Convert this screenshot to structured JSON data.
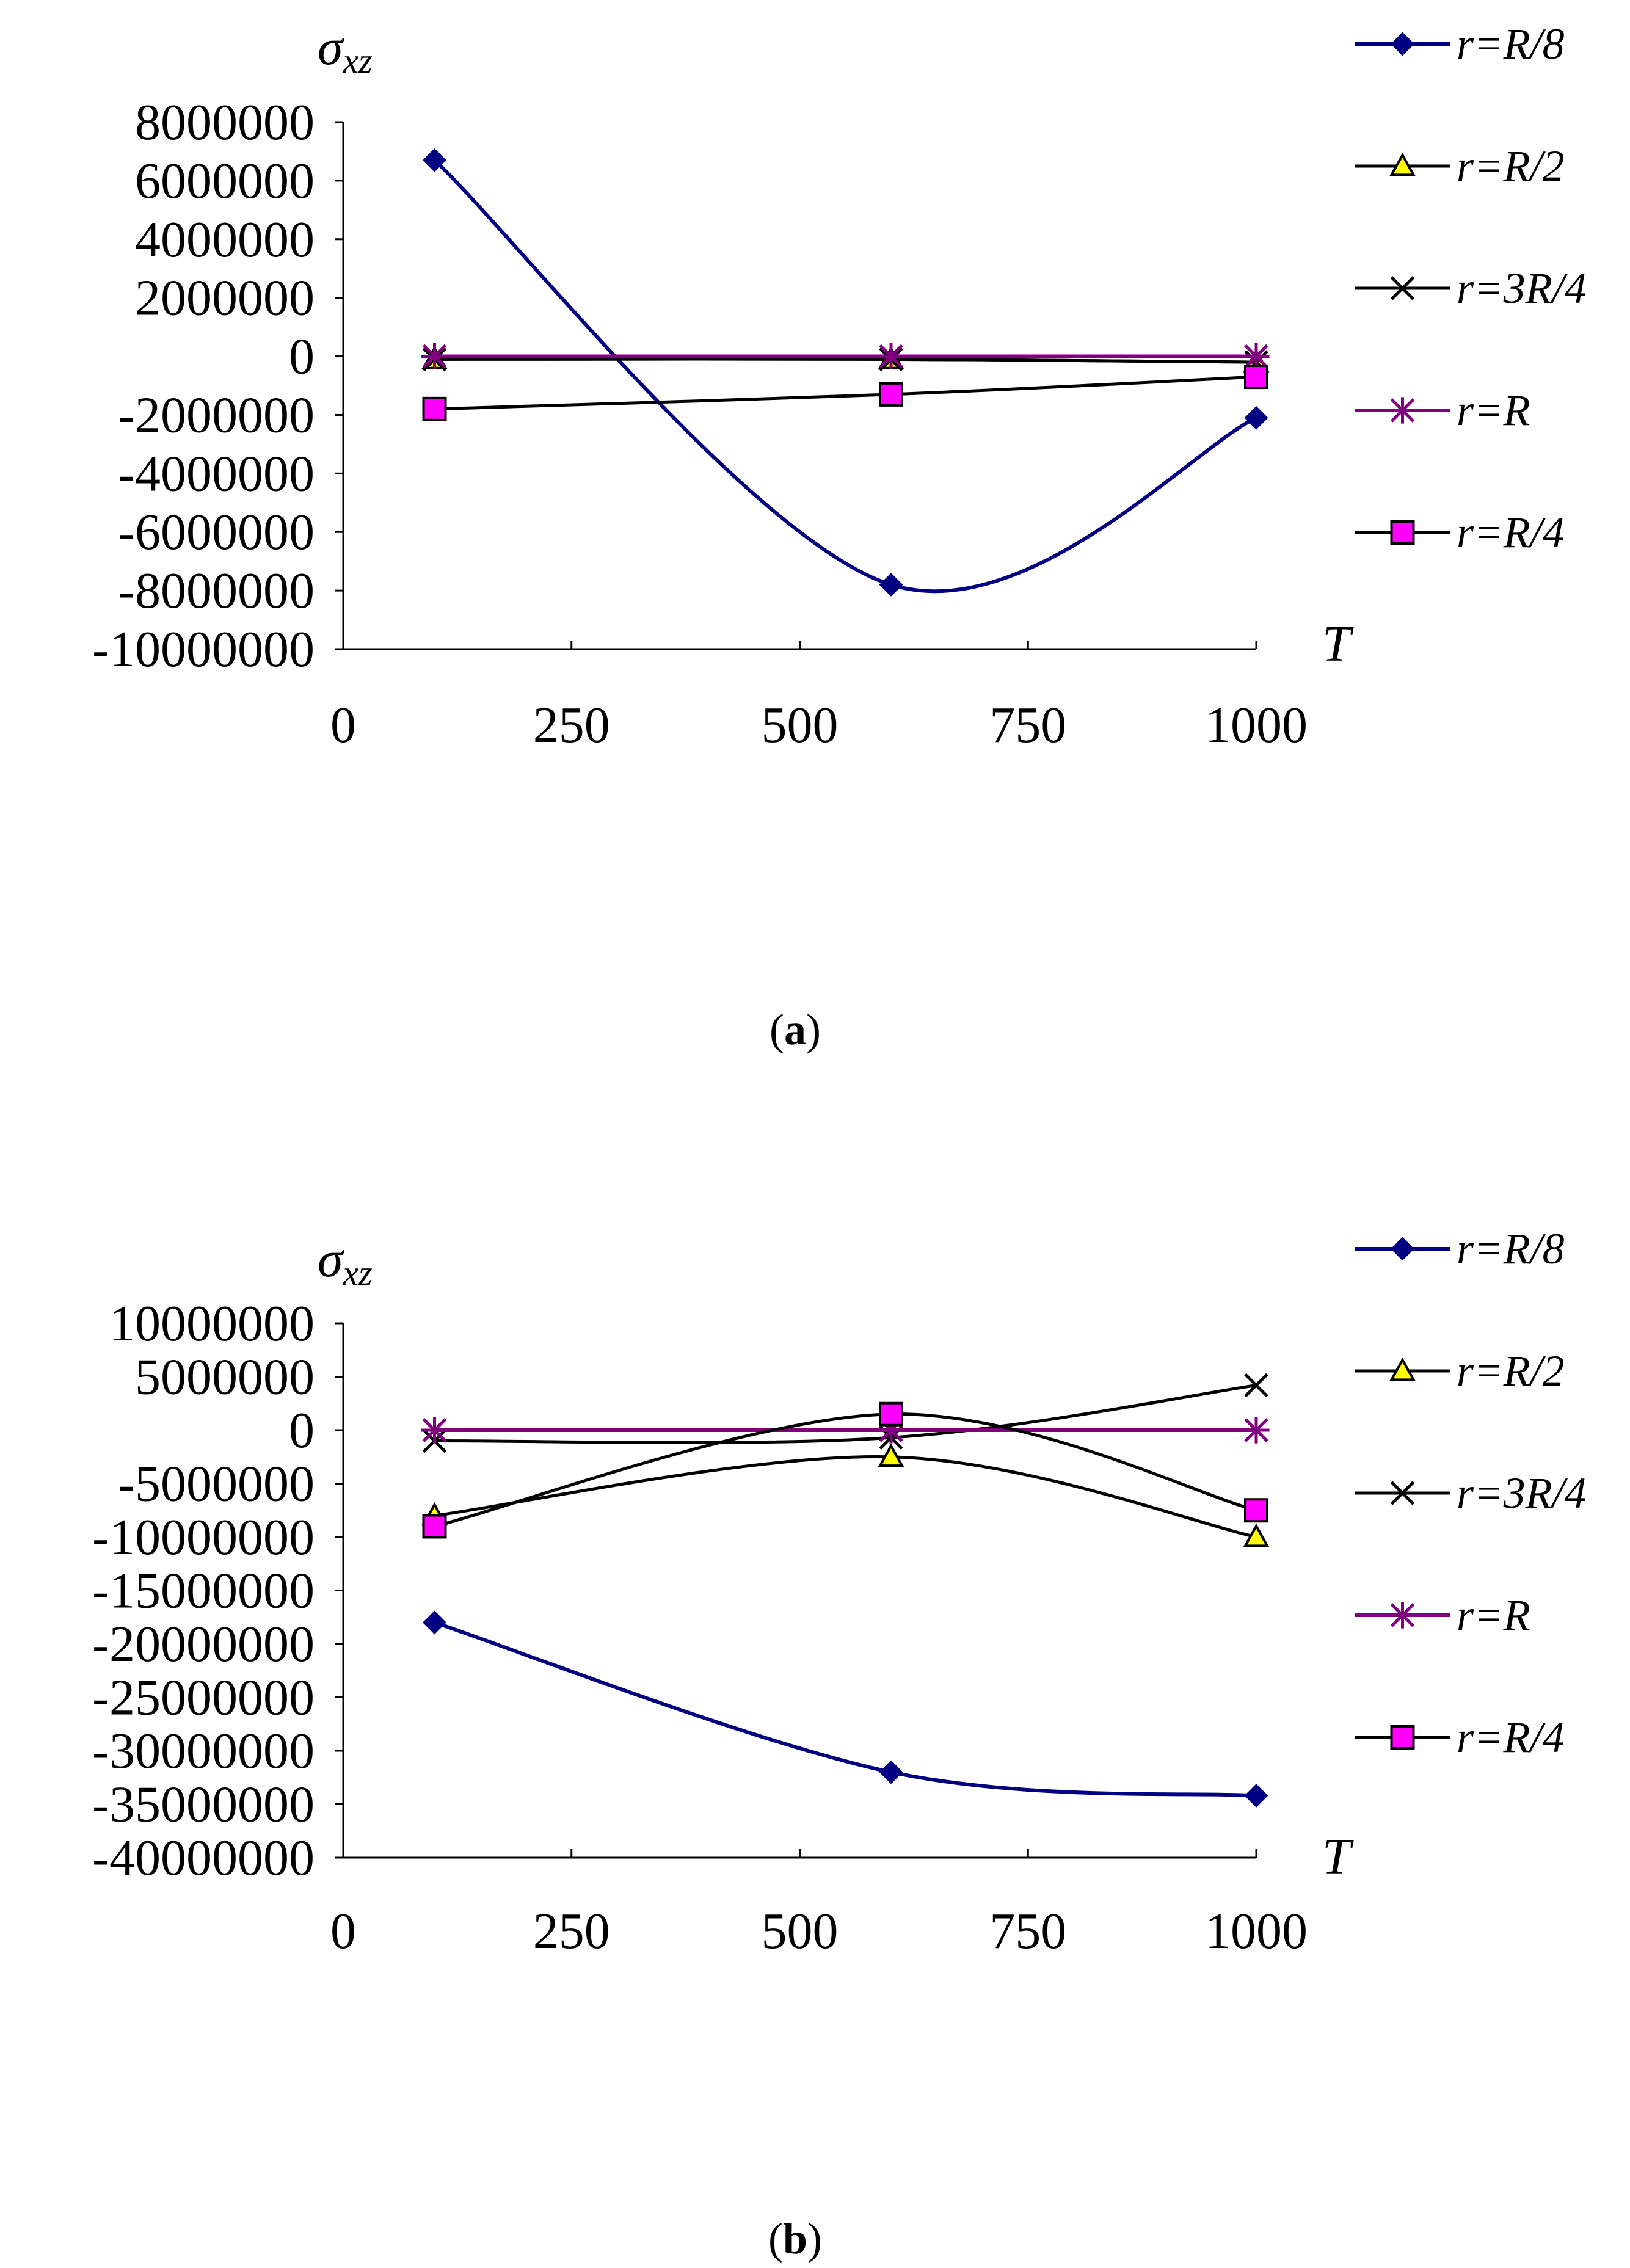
{
  "chart_data": [
    {
      "type": "line",
      "panel_label": "a",
      "caption_open": "(",
      "caption_close": ")",
      "ylabel_symbol": "σ",
      "ylabel_subscript": "xz",
      "xlabel": "T",
      "xlim": [
        0,
        1000
      ],
      "xticks": [
        "0",
        "250",
        "500",
        "750",
        "1000"
      ],
      "xtick_values": [
        0,
        250,
        500,
        750,
        1000
      ],
      "ylim": [
        -10000000,
        8000000
      ],
      "yticks": [
        "8000000",
        "6000000",
        "4000000",
        "2000000",
        "0",
        "-2000000",
        "-4000000",
        "-6000000",
        "-8000000",
        "-10000000"
      ],
      "ytick_values": [
        8000000,
        6000000,
        4000000,
        2000000,
        0,
        -2000000,
        -4000000,
        -6000000,
        -8000000,
        -10000000
      ],
      "x": [
        100,
        600,
        1000
      ],
      "series": [
        {
          "name": "r=R/8",
          "color": "#000080",
          "marker": "diamond",
          "smooth": true,
          "values": [
            6700000,
            -7800000,
            -2100000
          ]
        },
        {
          "name": "r=R/2",
          "color": "#000000",
          "marker": "triangle",
          "marker_fill": "#ffff00",
          "smooth": true,
          "values": [
            -100000,
            -100000,
            -200000
          ]
        },
        {
          "name": "r=3R/4",
          "color": "#000000",
          "marker": "x",
          "smooth": true,
          "values": [
            -100000,
            -100000,
            -200000
          ]
        },
        {
          "name": "r=R",
          "color": "#800080",
          "marker": "star",
          "smooth": true,
          "values": [
            0,
            0,
            0
          ]
        },
        {
          "name": "r=R/4",
          "color": "#000000",
          "marker": "square",
          "marker_fill": "#ff00ff",
          "smooth": true,
          "values": [
            -1800000,
            -1300000,
            -700000
          ]
        }
      ]
    },
    {
      "type": "line",
      "panel_label": "b",
      "caption_open": "(",
      "caption_close": ")",
      "ylabel_symbol": "σ",
      "ylabel_subscript": "xz",
      "xlabel": "T",
      "xlim": [
        0,
        1000
      ],
      "xticks": [
        "0",
        "250",
        "500",
        "750",
        "1000"
      ],
      "xtick_values": [
        0,
        250,
        500,
        750,
        1000
      ],
      "ylim": [
        -40000000,
        10000000
      ],
      "yticks": [
        "10000000",
        "5000000",
        "0",
        "-5000000",
        "-10000000",
        "-15000000",
        "-20000000",
        "-25000000",
        "-30000000",
        "-35000000",
        "-40000000"
      ],
      "ytick_values": [
        10000000,
        5000000,
        0,
        -5000000,
        -10000000,
        -15000000,
        -20000000,
        -25000000,
        -30000000,
        -35000000,
        -40000000
      ],
      "x": [
        100,
        600,
        1000
      ],
      "series": [
        {
          "name": "r=R/8",
          "color": "#000080",
          "marker": "diamond",
          "smooth": true,
          "values": [
            -18000000,
            -32000000,
            -34200000
          ]
        },
        {
          "name": "r=R/2",
          "color": "#000000",
          "marker": "triangle",
          "marker_fill": "#ffff00",
          "smooth": true,
          "values": [
            -8000000,
            -2500000,
            -10000000
          ]
        },
        {
          "name": "r=3R/4",
          "color": "#000000",
          "marker": "x",
          "smooth": true,
          "values": [
            -1000000,
            -700000,
            4200000
          ]
        },
        {
          "name": "r=R",
          "color": "#800080",
          "marker": "star",
          "smooth": true,
          "values": [
            0,
            0,
            0
          ]
        },
        {
          "name": "r=R/4",
          "color": "#000000",
          "marker": "square",
          "marker_fill": "#ff00ff",
          "smooth": true,
          "values": [
            -9000000,
            1500000,
            -7500000
          ]
        }
      ]
    }
  ]
}
